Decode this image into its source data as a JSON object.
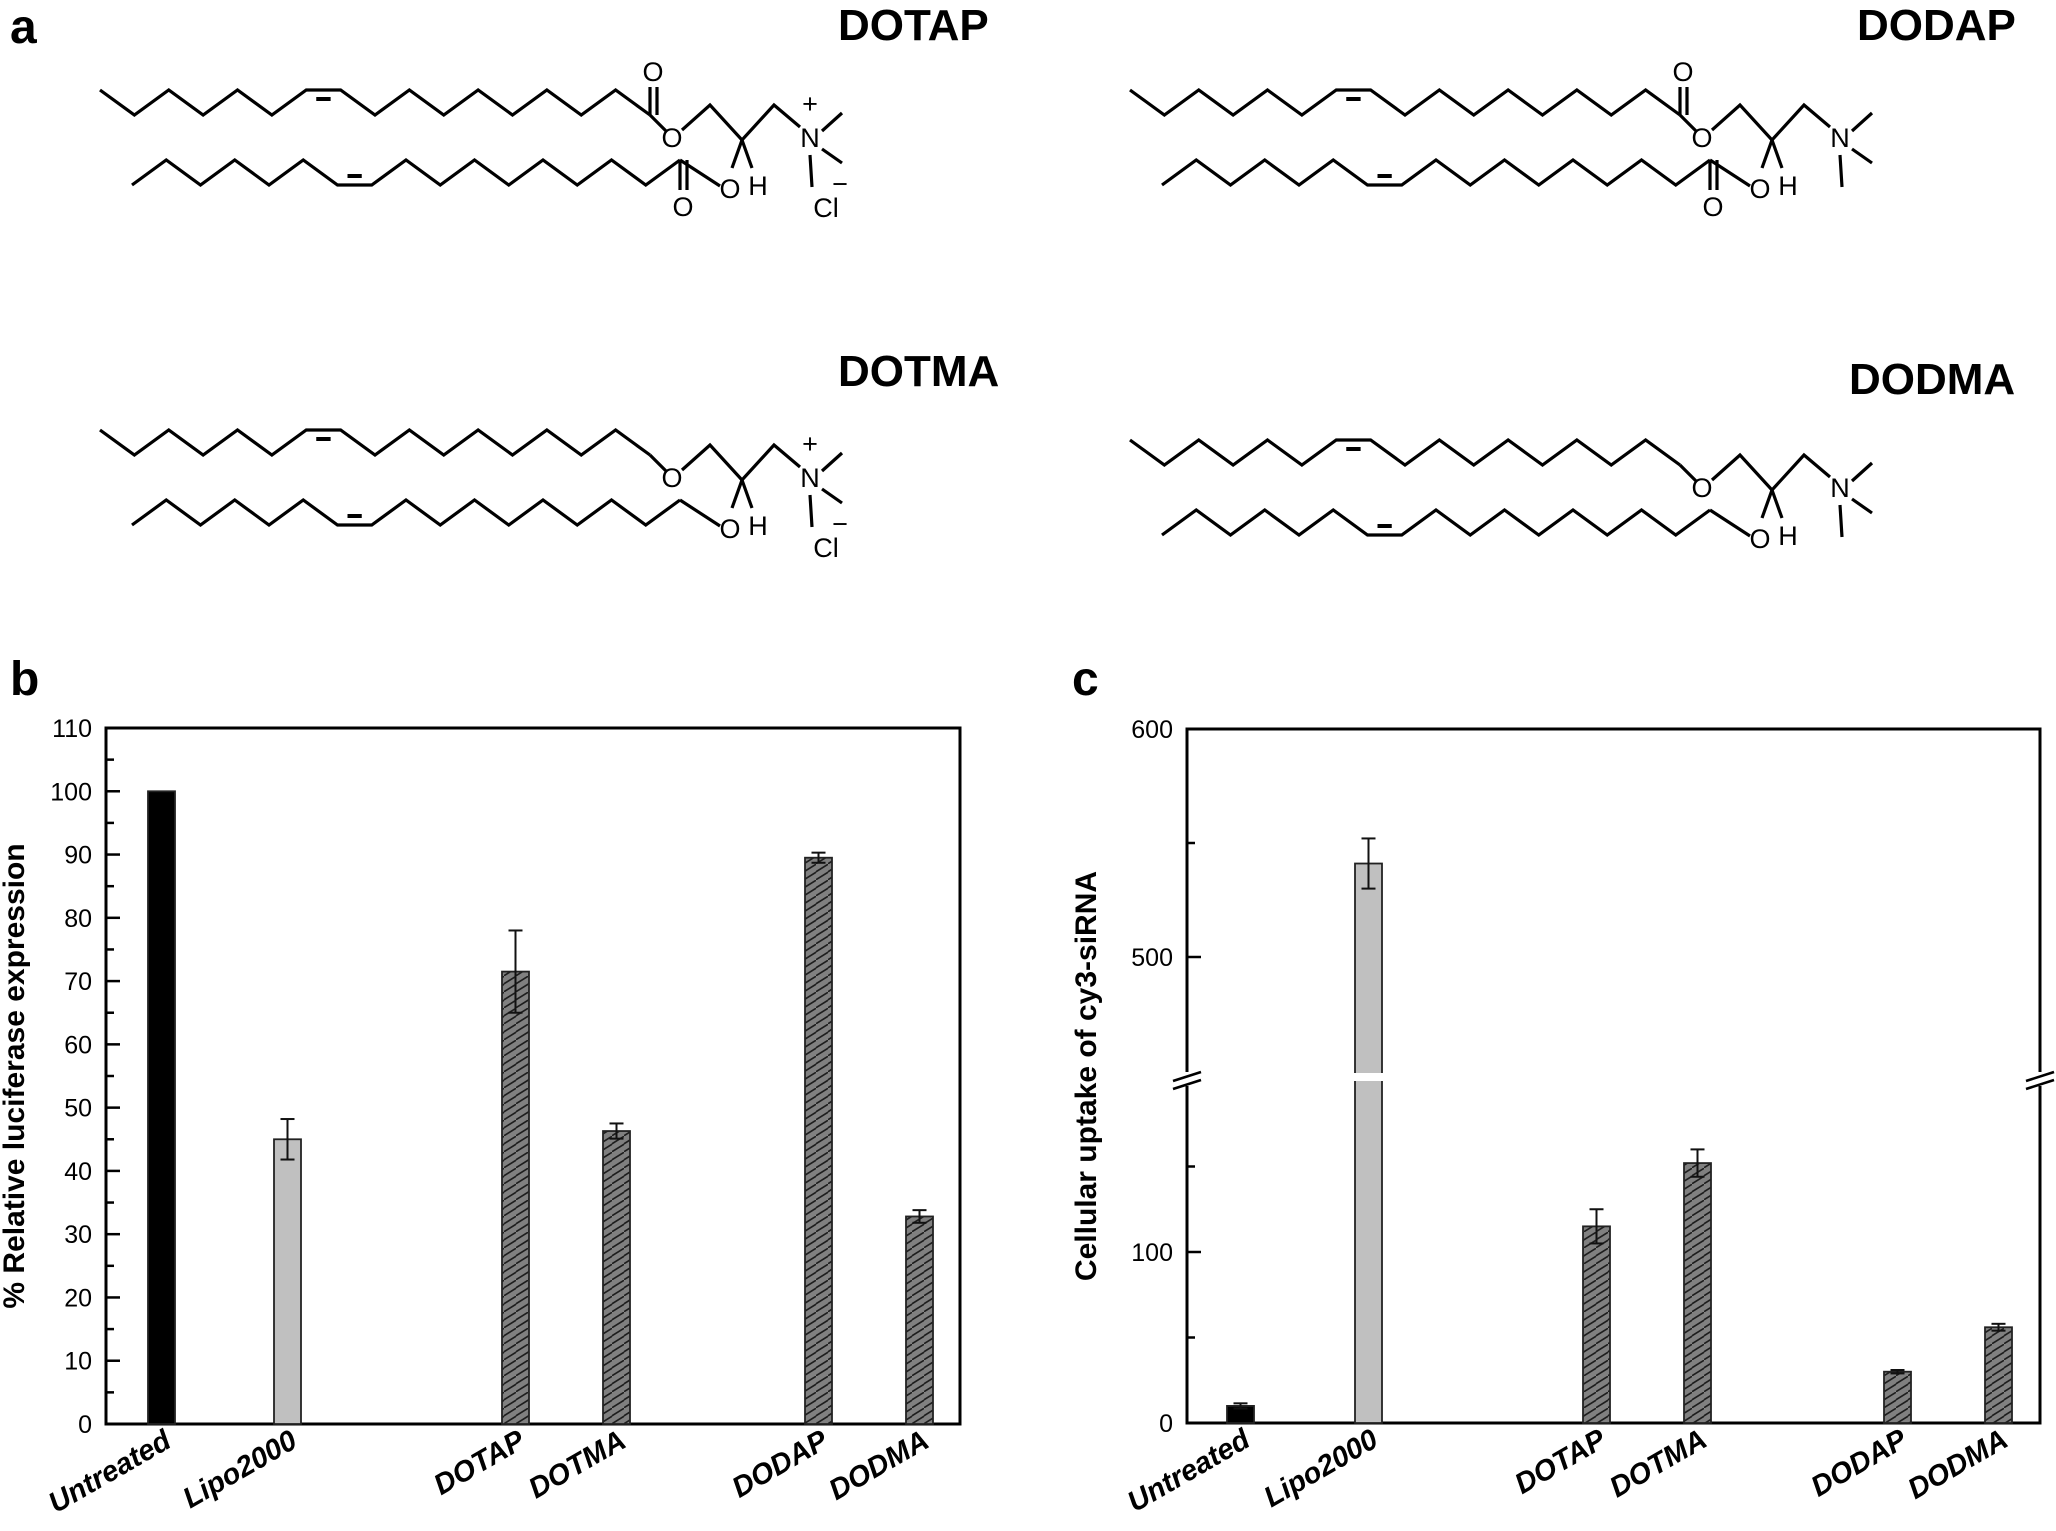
{
  "figure": {
    "panels": {
      "a": {
        "letter": "a"
      },
      "b": {
        "letter": "b"
      },
      "c": {
        "letter": "c"
      }
    },
    "molecules": [
      {
        "name": "DOTAP",
        "headgroup": "trimethylammonium",
        "linkage": "ester",
        "counterion": "Cl-",
        "atoms": [
          "O",
          "O",
          "O",
          "O",
          "H",
          "N",
          "+",
          "Cl",
          "-"
        ]
      },
      {
        "name": "DODAP",
        "headgroup": "dimethylamino",
        "linkage": "ester",
        "atoms": [
          "O",
          "O",
          "O",
          "O",
          "H",
          "N"
        ]
      },
      {
        "name": "DOTMA",
        "headgroup": "trimethylammonium",
        "linkage": "ether",
        "counterion": "Cl-",
        "atoms": [
          "O",
          "O",
          "H",
          "N",
          "+",
          "Cl",
          "-"
        ]
      },
      {
        "name": "DODMA",
        "headgroup": "dimethylamino",
        "linkage": "ether",
        "atoms": [
          "O",
          "O",
          "H",
          "N"
        ]
      }
    ],
    "atom_labels": {
      "O": "O",
      "H": "H",
      "N": "N",
      "Cl": "Cl",
      "plus": "+",
      "minus": "−"
    }
  },
  "colors": {
    "untreated": "#000000",
    "lipo2000": "#c0c0c0",
    "lipid": "#808080",
    "hatch": "#222222",
    "axis": "#000000"
  },
  "chart_data": [
    {
      "panel": "b",
      "type": "bar",
      "title": "",
      "xlabel": "",
      "ylabel": "% Relative luciferase expression",
      "categories": [
        "Untreated",
        "Lipo2000",
        "DOTAP",
        "DOTMA",
        "DODAP",
        "DODMA"
      ],
      "values": [
        100,
        45,
        71.5,
        46.3,
        89.5,
        32.8
      ],
      "error": [
        0,
        3.2,
        6.5,
        1.2,
        0.8,
        1.0
      ],
      "fills": [
        "solid-black",
        "solid-lightgray",
        "hatched-gray",
        "hatched-gray",
        "hatched-gray",
        "hatched-gray"
      ],
      "ylim": [
        0,
        110
      ],
      "yticks": [
        0,
        10,
        20,
        30,
        40,
        50,
        60,
        70,
        80,
        90,
        100,
        110
      ],
      "yticks_minor_step": 5,
      "grid": false,
      "legend": null
    },
    {
      "panel": "c",
      "type": "bar",
      "title": "",
      "xlabel": "",
      "ylabel": "Cellular uptake of cy3-siRNA",
      "categories": [
        "Untreated",
        "Lipo2000",
        "DOTAP",
        "DOTMA",
        "DODAP",
        "DODMA"
      ],
      "values": [
        10,
        541,
        115,
        152,
        30,
        56
      ],
      "error": [
        1.5,
        11,
        10,
        8,
        1,
        2
      ],
      "fills": [
        "solid-black",
        "solid-lightgray",
        "hatched-gray",
        "hatched-gray",
        "hatched-gray",
        "hatched-gray"
      ],
      "ylim": [
        0,
        600
      ],
      "axis_break": {
        "lower": [
          0,
          200
        ],
        "upper": [
          450,
          600
        ]
      },
      "yticks": [
        0,
        100,
        500,
        600
      ],
      "yticks_labels": [
        "0",
        "100",
        "500",
        "600"
      ],
      "yticks_minor": [
        50,
        150,
        550
      ],
      "grid": false,
      "legend": null
    }
  ]
}
